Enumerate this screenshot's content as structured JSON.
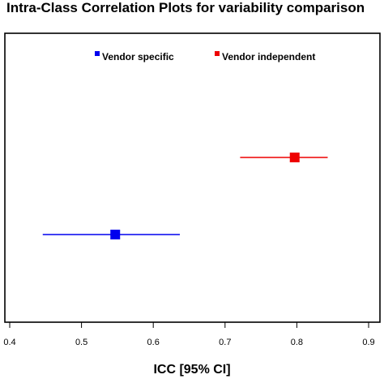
{
  "chart_data": {
    "type": "scatter",
    "title": "Intra-Class Correlation Plots for variability comparison",
    "xlabel": "ICC [95% CI]",
    "ylabel": "",
    "xlim": [
      0.4,
      0.9
    ],
    "x_ticks": [
      "0.4",
      "0.5",
      "0.6",
      "0.7",
      "0.8",
      "0.9"
    ],
    "grid": false,
    "legend_position": "top",
    "series": [
      {
        "name": "Vendor specific",
        "color": "#0000ee",
        "icc": 0.547,
        "ci_low": 0.446,
        "ci_high": 0.637
      },
      {
        "name": "Vendor independent",
        "color": "#ee0000",
        "icc": 0.797,
        "ci_low": 0.721,
        "ci_high": 0.843
      }
    ]
  }
}
